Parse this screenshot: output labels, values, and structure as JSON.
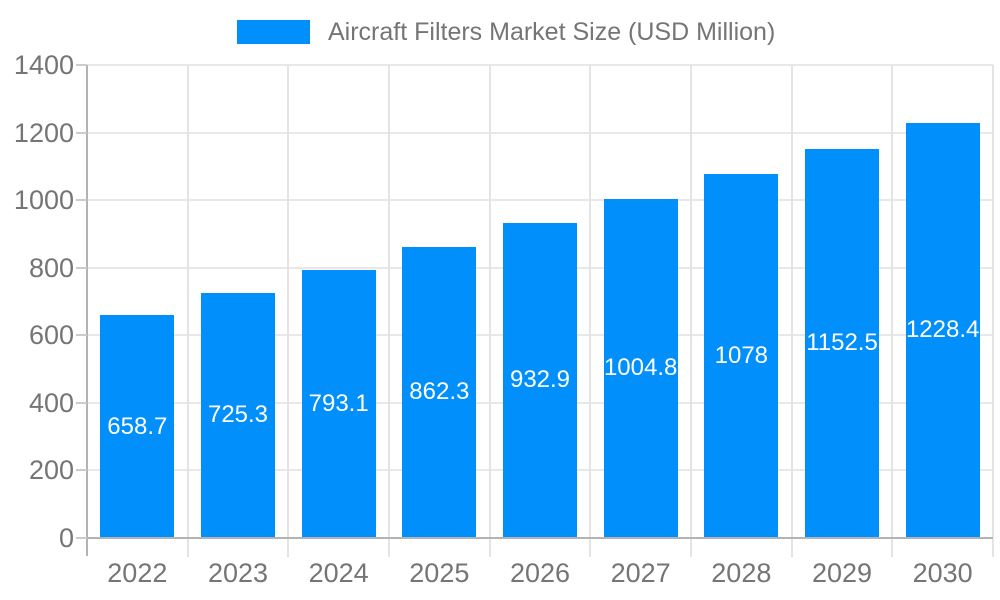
{
  "legend": {
    "label": "Aircraft Filters Market Size (USD Million)"
  },
  "chart_data": {
    "type": "bar",
    "title": "Aircraft Filters Market Size (USD Million)",
    "series_name": "Aircraft Filters Market Size (USD Million)",
    "categories": [
      "2022",
      "2023",
      "2024",
      "2025",
      "2026",
      "2027",
      "2028",
      "2029",
      "2030"
    ],
    "values": [
      658.7,
      725.3,
      793.1,
      862.3,
      932.9,
      1004.8,
      1078,
      1152.5,
      1228.4
    ],
    "value_labels": [
      "658.7",
      "725.3",
      "793.1",
      "862.3",
      "932.9",
      "1004.8",
      "1078",
      "1152.5",
      "1228.4"
    ],
    "xlabel": "",
    "ylabel": "",
    "ylim": [
      0,
      1400
    ],
    "ytick_step": 200,
    "yticks": [
      0,
      200,
      400,
      600,
      800,
      1000,
      1200,
      1400
    ],
    "grid": true,
    "legend_position": "top-center",
    "value_label_position": "inside-center"
  },
  "colors": {
    "bar": "#008FFB",
    "axis_text": "#757575",
    "value_label": "#FFFFFF",
    "grid_line": "#E8E8E8",
    "boundary_line": "#E4E4E4",
    "axis_line": "#B3B3B3",
    "tick": "#CCCCCC",
    "background": "#FFFFFF"
  }
}
